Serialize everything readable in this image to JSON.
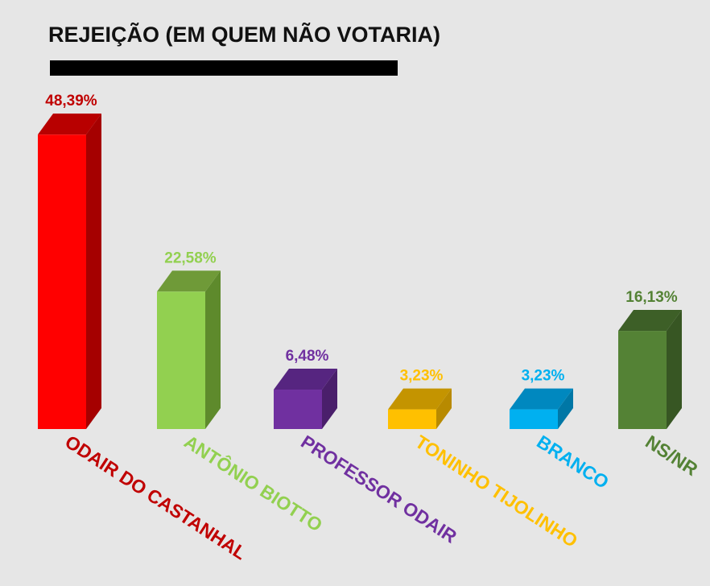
{
  "chart_data": {
    "type": "bar",
    "title": "REJEIÇÃO (EM QUEM NÃO VOTARIA)",
    "xlabel": "",
    "ylabel": "",
    "ylim": [
      0,
      50
    ],
    "grid": false,
    "categories": [
      "ODAIR DO CASTANHAL",
      "ANTÔNIO BIOTTO",
      "PROFESSOR ODAIR",
      "TONINHO TIJOLINHO",
      "BRANCO",
      "NS/NR"
    ],
    "values": [
      48.39,
      22.58,
      6.48,
      3.23,
      3.23,
      16.13
    ],
    "value_labels": [
      "48,39%",
      "22,58%",
      "6,48%",
      "3,23%",
      "3,23%",
      "16,13%"
    ],
    "colors": {
      "front": [
        "#ff0000",
        "#92d050",
        "#7030a0",
        "#ffc000",
        "#00b0f0",
        "#548235"
      ],
      "side": [
        "#a50000",
        "#5e8a2c",
        "#4a1f6b",
        "#b88a00",
        "#0077a6",
        "#375623"
      ],
      "top": [
        "#b80000",
        "#6f9a38",
        "#562580",
        "#c49400",
        "#0088bf",
        "#3d5f27"
      ],
      "label": [
        "#c00000",
        "#92d050",
        "#7030a0",
        "#ffc000",
        "#00b0f0",
        "#548235"
      ]
    },
    "title_bar_color": "#000000",
    "background": "#e6e6e6"
  }
}
